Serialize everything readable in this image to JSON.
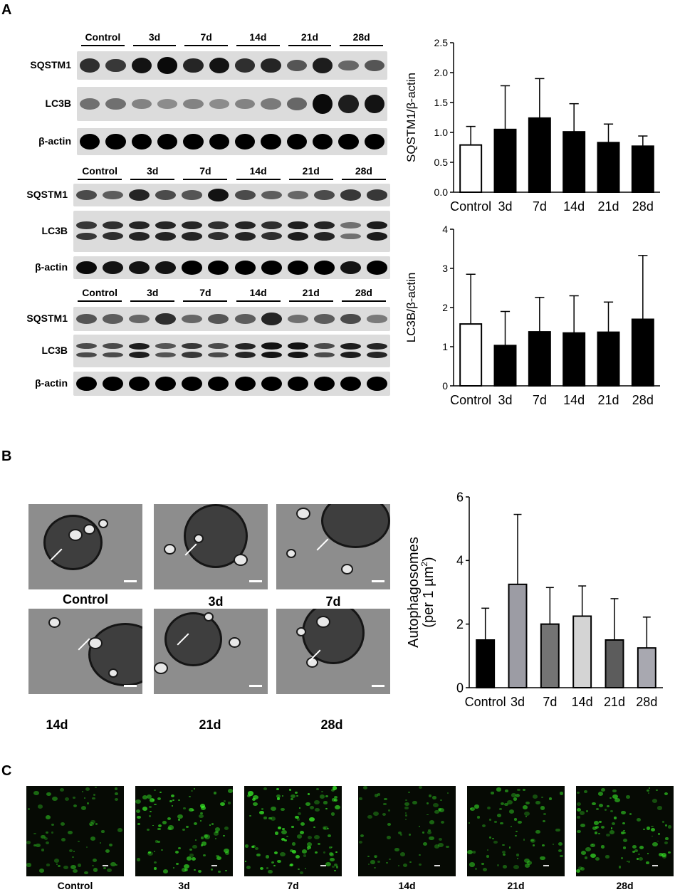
{
  "panels": {
    "a": "A",
    "b": "B",
    "c": "C"
  },
  "blots": [
    {
      "groups": [
        "Control",
        "3d",
        "7d",
        "14d",
        "21d",
        "28d"
      ],
      "rows": [
        {
          "label": "SQSTM1",
          "intensity": [
            0.75,
            0.7,
            0.9,
            0.95,
            0.8,
            0.9,
            0.75,
            0.8,
            0.55,
            0.85,
            0.45,
            0.55
          ]
        },
        {
          "label": "LC3B",
          "intensity": [
            0.4,
            0.4,
            0.3,
            0.25,
            0.3,
            0.25,
            0.3,
            0.35,
            0.45,
            0.95,
            0.85,
            0.9
          ]
        },
        {
          "label": "β-actin",
          "intensity": [
            1,
            1,
            1,
            1,
            1,
            1,
            1,
            1,
            1,
            1,
            1,
            1
          ]
        }
      ]
    },
    {
      "groups": [
        "Control",
        "3d",
        "7d",
        "14d",
        "21d",
        "28d"
      ],
      "rows": [
        {
          "label": "SQSTM1",
          "intensity": [
            0.6,
            0.5,
            0.8,
            0.6,
            0.55,
            0.9,
            0.6,
            0.5,
            0.45,
            0.6,
            0.7,
            0.7
          ]
        },
        {
          "label": "LC3B",
          "intensity": [
            0.7,
            0.75,
            0.8,
            0.8,
            0.8,
            0.75,
            0.8,
            0.75,
            0.85,
            0.8,
            0.4,
            0.85
          ]
        },
        {
          "label": "β-actin",
          "intensity": [
            0.95,
            0.9,
            0.9,
            0.9,
            1,
            1,
            1,
            1,
            1,
            1,
            0.9,
            1
          ]
        }
      ]
    },
    {
      "groups": [
        "Control",
        "3d",
        "7d",
        "14d",
        "21d",
        "28d"
      ],
      "rows": [
        {
          "label": "SQSTM1",
          "intensity": [
            0.55,
            0.5,
            0.45,
            0.75,
            0.45,
            0.55,
            0.5,
            0.8,
            0.4,
            0.5,
            0.6,
            0.35
          ]
        },
        {
          "label": "LC3B",
          "intensity": [
            0.6,
            0.6,
            0.85,
            0.55,
            0.7,
            0.6,
            0.8,
            0.9,
            0.9,
            0.6,
            0.85,
            0.8
          ]
        },
        {
          "label": "β-actin",
          "intensity": [
            1,
            1,
            1,
            1,
            1,
            1,
            1,
            1,
            1,
            1,
            1,
            1
          ]
        }
      ]
    }
  ],
  "chart_data": [
    {
      "type": "bar",
      "categories": [
        "Control",
        "3d",
        "7d",
        "14d",
        "21d",
        "28d"
      ],
      "values": [
        0.79,
        1.05,
        1.24,
        1.01,
        0.83,
        0.77
      ],
      "errors": [
        0.31,
        0.73,
        0.66,
        0.47,
        0.31,
        0.17
      ],
      "fills": [
        "#ffffff",
        "#000000",
        "#000000",
        "#000000",
        "#000000",
        "#000000"
      ],
      "ylabel": "SQSTM1/β-actin",
      "ylim": [
        0,
        2.5
      ],
      "yticks": [
        "0.0",
        "0.5",
        "1.0",
        "1.5",
        "2.0",
        "2.5"
      ],
      "grid": false
    },
    {
      "type": "bar",
      "categories": [
        "Control",
        "3d",
        "7d",
        "14d",
        "21d",
        "28d"
      ],
      "values": [
        1.58,
        1.03,
        1.38,
        1.35,
        1.37,
        1.7
      ],
      "errors": [
        1.27,
        0.87,
        0.88,
        0.95,
        0.77,
        1.63
      ],
      "fills": [
        "#ffffff",
        "#000000",
        "#000000",
        "#000000",
        "#000000",
        "#000000"
      ],
      "ylabel": "LC3B/β-actin",
      "ylim": [
        0,
        4
      ],
      "yticks": [
        "0",
        "1",
        "2",
        "3",
        "4"
      ],
      "grid": false
    },
    {
      "type": "bar",
      "categories": [
        "Control",
        "3d",
        "7d",
        "14d",
        "21d",
        "28d"
      ],
      "values": [
        1.5,
        3.25,
        2.0,
        2.25,
        1.5,
        1.25
      ],
      "errors": [
        1.0,
        2.2,
        1.15,
        0.95,
        1.3,
        0.97
      ],
      "fills": [
        "#000000",
        "#9c9ca4",
        "#747474",
        "#d4d4d4",
        "#5c5c5c",
        "#a8a8b0"
      ],
      "ylabel": "Autophagosomes",
      "ylabel2": "(per 1 µm",
      "ylabel2_sup": "2",
      "ylabel2_end": ")",
      "ylim": [
        0,
        6
      ],
      "yticks": [
        "0",
        "2",
        "4",
        "6"
      ],
      "grid": false
    }
  ],
  "em_images": [
    "Control",
    "3d",
    "7d",
    "14d",
    "21d",
    "28d"
  ],
  "fluorescence_images": [
    "Control",
    "3d",
    "7d",
    "14d",
    "21d",
    "28d"
  ],
  "colors": {
    "fluorescence": "#3cff2a",
    "blot_background": "#dcdcdc",
    "band": "#000000"
  }
}
